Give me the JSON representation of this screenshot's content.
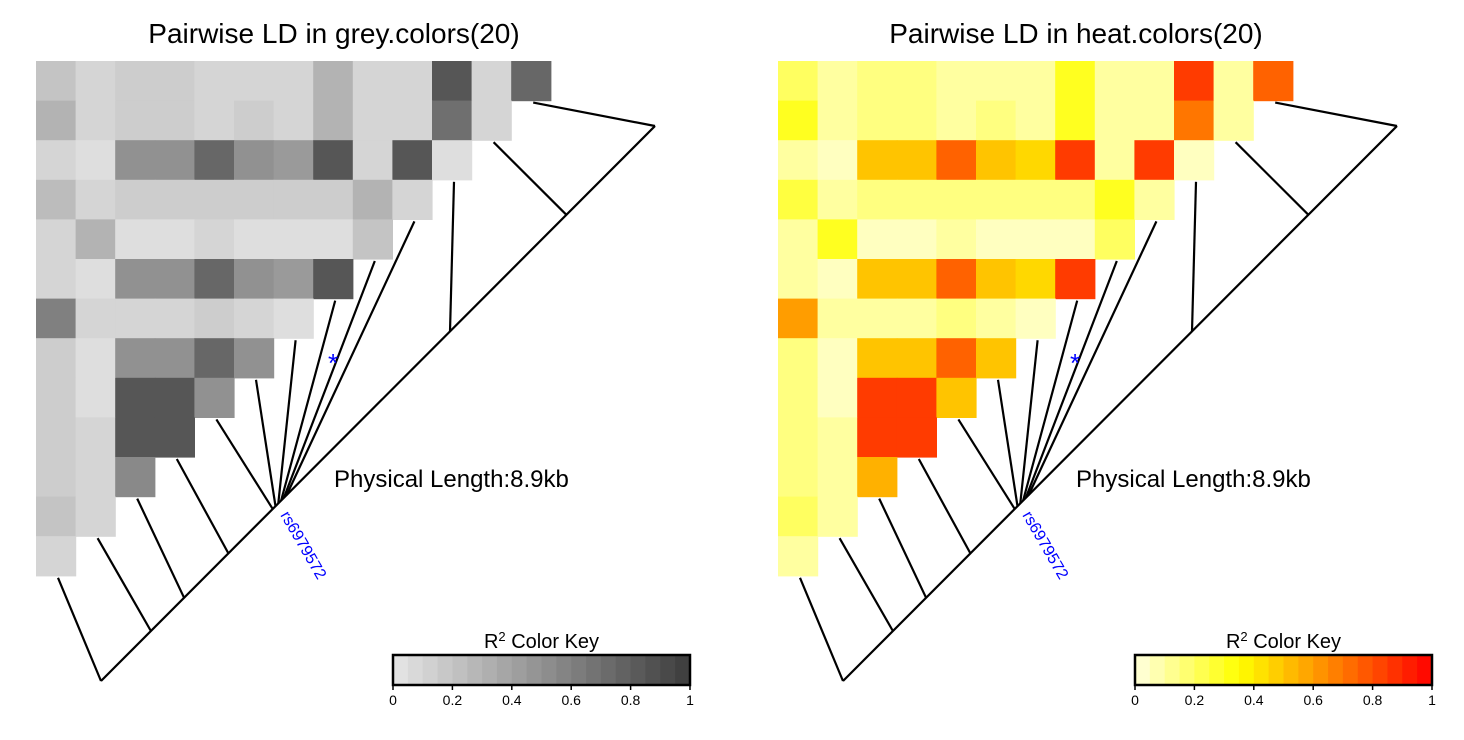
{
  "chart_data": [
    {
      "type": "heatmap",
      "title": "Pairwise LD in grey.colors(20)",
      "palette": "grey",
      "value_scale": [
        0,
        1
      ],
      "physical_length": "Physical Length:8.9kb",
      "snp_label": "rs6979572",
      "marker": "*",
      "marker_color": "#0000ff",
      "color_key": {
        "title_prefix": "R",
        "title_superscript": "2",
        "title_suffix": " Color Key",
        "ticks": [
          "0",
          "0.2",
          "0.4",
          "0.6",
          "0.8",
          "1"
        ]
      },
      "matrix": [
        [
          0.2,
          0.1,
          0.15,
          0.15,
          0.1,
          0.1,
          0.1,
          0.3,
          0.1,
          0.1,
          0.85,
          0.1,
          0.75
        ],
        [
          0.3,
          0.1,
          0.15,
          0.15,
          0.1,
          0.15,
          0.1,
          0.3,
          0.1,
          0.1,
          0.7,
          0.1
        ],
        [
          0.1,
          0.05,
          0.5,
          0.5,
          0.75,
          0.5,
          0.45,
          0.85,
          0.1,
          0.85,
          0.05
        ],
        [
          0.25,
          0.1,
          0.15,
          0.15,
          0.15,
          0.15,
          0.15,
          0.15,
          0.3,
          0.1
        ],
        [
          0.1,
          0.3,
          0.05,
          0.05,
          0.1,
          0.05,
          0.05,
          0.05,
          0.2
        ],
        [
          0.1,
          0.05,
          0.5,
          0.5,
          0.75,
          0.5,
          0.45,
          0.85
        ],
        [
          0.6,
          0.1,
          0.1,
          0.1,
          0.15,
          0.1,
          0.05
        ],
        [
          0.15,
          0.05,
          0.5,
          0.5,
          0.75,
          0.5
        ],
        [
          0.15,
          0.05,
          0.85,
          0.85,
          0.5
        ],
        [
          0.15,
          0.1,
          0.85,
          0.85
        ],
        [
          0.15,
          0.1,
          0.55
        ],
        [
          0.2,
          0.1
        ],
        [
          0.1
        ]
      ]
    },
    {
      "type": "heatmap",
      "title": "Pairwise LD in heat.colors(20)",
      "palette": "heat",
      "value_scale": [
        0,
        1
      ],
      "physical_length": "Physical Length:8.9kb",
      "snp_label": "rs6979572",
      "marker": "*",
      "marker_color": "#0000ff",
      "color_key": {
        "title_prefix": "R",
        "title_superscript": "2",
        "title_suffix": " Color Key",
        "ticks": [
          "0",
          "0.2",
          "0.4",
          "0.6",
          "0.8",
          "1"
        ]
      },
      "matrix": [
        [
          0.2,
          0.1,
          0.15,
          0.15,
          0.1,
          0.1,
          0.1,
          0.3,
          0.1,
          0.1,
          0.85,
          0.1,
          0.75
        ],
        [
          0.3,
          0.1,
          0.15,
          0.15,
          0.1,
          0.15,
          0.1,
          0.3,
          0.1,
          0.1,
          0.7,
          0.1
        ],
        [
          0.1,
          0.05,
          0.5,
          0.5,
          0.75,
          0.5,
          0.45,
          0.85,
          0.1,
          0.85,
          0.05
        ],
        [
          0.25,
          0.1,
          0.15,
          0.15,
          0.15,
          0.15,
          0.15,
          0.15,
          0.3,
          0.1
        ],
        [
          0.1,
          0.3,
          0.05,
          0.05,
          0.1,
          0.05,
          0.05,
          0.05,
          0.2
        ],
        [
          0.1,
          0.05,
          0.5,
          0.5,
          0.75,
          0.5,
          0.45,
          0.85
        ],
        [
          0.6,
          0.1,
          0.1,
          0.1,
          0.15,
          0.1,
          0.05
        ],
        [
          0.15,
          0.05,
          0.5,
          0.5,
          0.75,
          0.5
        ],
        [
          0.15,
          0.05,
          0.85,
          0.85,
          0.5
        ],
        [
          0.15,
          0.1,
          0.85,
          0.85
        ],
        [
          0.15,
          0.1,
          0.55
        ],
        [
          0.2,
          0.1
        ],
        [
          0.1
        ]
      ]
    }
  ]
}
